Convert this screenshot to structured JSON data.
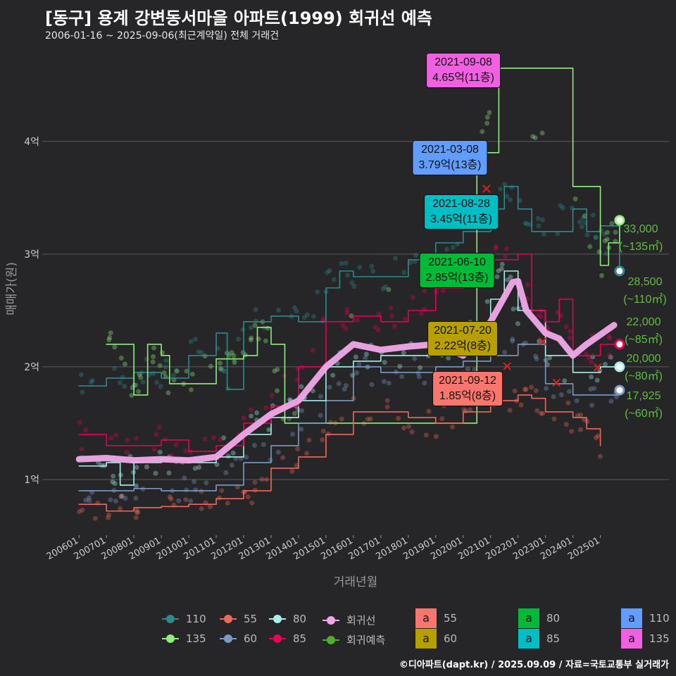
{
  "title": "[동구] 용계 강변동서마을 아파트(1999) 회귀선 예측",
  "subtitle": "2006-01-16 ~ 2025-09-06(최근계약일) 전체 거래건",
  "footer": "©디아파트(dapt.kr) / 2025.09.09 / 자료=국토교통부 실거래가",
  "chart_data": {
    "type": "line",
    "xlabel": "거래년월",
    "ylabel": "매매가(원)",
    "xlim": [
      2004.66,
      2027.5
    ],
    "ylim": [
      5060,
      48800
    ],
    "yticks": [
      {
        "v": 10000,
        "label": "1억"
      },
      {
        "v": 20000,
        "label": "2억"
      },
      {
        "v": 30000,
        "label": "3억"
      },
      {
        "v": 40000,
        "label": "4억"
      }
    ],
    "xticks": [
      "200601",
      "200701",
      "200801",
      "200901",
      "201001",
      "201101",
      "201201",
      "201301",
      "201401",
      "201501",
      "201601",
      "201701",
      "201801",
      "201901",
      "202001",
      "202101",
      "202201",
      "202301",
      "202401",
      "202501"
    ],
    "grid": true,
    "series": [
      {
        "name": "110",
        "color": "#2e8b8b",
        "points": [
          [
            2006,
            18300
          ],
          [
            2007,
            19000
          ],
          [
            2008,
            19500
          ],
          [
            2008.5,
            19500
          ],
          [
            2009,
            19000
          ],
          [
            2010,
            21000
          ],
          [
            2011,
            23000
          ],
          [
            2011.4,
            18000
          ],
          [
            2012,
            24000
          ],
          [
            2013,
            24500
          ],
          [
            2014,
            24000
          ],
          [
            2015,
            27000
          ],
          [
            2015.5,
            28500
          ],
          [
            2016,
            28000
          ],
          [
            2017,
            28000
          ],
          [
            2018,
            29500
          ],
          [
            2019,
            31000
          ],
          [
            2020,
            32000
          ],
          [
            2021,
            34000
          ],
          [
            2021.5,
            36000
          ],
          [
            2022,
            34000
          ],
          [
            2022.5,
            32000
          ],
          [
            2023,
            32000
          ],
          [
            2024,
            34000
          ],
          [
            2024.5,
            32000
          ],
          [
            2025,
            32500
          ],
          [
            2025.7,
            28500
          ]
        ]
      },
      {
        "name": "135",
        "color": "#90ee7a",
        "points": [
          [
            2007,
            22000
          ],
          [
            2007.5,
            22000
          ],
          [
            2008,
            17500
          ],
          [
            2008.5,
            22000
          ],
          [
            2009,
            21000
          ],
          [
            2009.3,
            18500
          ],
          [
            2010,
            18500
          ],
          [
            2011,
            20700
          ],
          [
            2011.5,
            20700
          ],
          [
            2012,
            21000
          ],
          [
            2012.5,
            23500
          ],
          [
            2013,
            22000
          ],
          [
            2013.5,
            15000
          ],
          [
            2020.5,
            39000
          ],
          [
            2021.3,
            46500
          ],
          [
            2024,
            36000
          ],
          [
            2025,
            29000
          ],
          [
            2025.3,
            31000
          ],
          [
            2025.7,
            33000
          ]
        ]
      },
      {
        "name": "55",
        "color": "#f0685a",
        "points": [
          [
            2006,
            7800
          ],
          [
            2007,
            7200
          ],
          [
            2008,
            7500
          ],
          [
            2009,
            7600
          ],
          [
            2010,
            7800
          ],
          [
            2011,
            8300
          ],
          [
            2012,
            9000
          ],
          [
            2012.4,
            9000
          ],
          [
            2013,
            11000
          ],
          [
            2014,
            12000
          ],
          [
            2015,
            14000
          ],
          [
            2016,
            16000
          ],
          [
            2017,
            16000
          ],
          [
            2018,
            15500
          ],
          [
            2019,
            15000
          ],
          [
            2020,
            16000
          ],
          [
            2021,
            17000
          ],
          [
            2022,
            17500
          ],
          [
            2022.5,
            17200
          ],
          [
            2023,
            16000
          ],
          [
            2024,
            15500
          ],
          [
            2024.5,
            14500
          ],
          [
            2025,
            13000
          ]
        ]
      },
      {
        "name": "60",
        "color": "#7e9ac4",
        "points": [
          [
            2006,
            9000
          ],
          [
            2007,
            9000
          ],
          [
            2008,
            9200
          ],
          [
            2009,
            9000
          ],
          [
            2010,
            9000
          ],
          [
            2011,
            9500
          ],
          [
            2012,
            11500
          ],
          [
            2013,
            13000
          ],
          [
            2014,
            15000
          ],
          [
            2015,
            17000
          ],
          [
            2016,
            20000
          ],
          [
            2017,
            19500
          ],
          [
            2018,
            19500
          ],
          [
            2019,
            20000
          ],
          [
            2020,
            20500
          ],
          [
            2021,
            21000
          ],
          [
            2022,
            22000
          ],
          [
            2023,
            18500
          ],
          [
            2024,
            17500
          ],
          [
            2025,
            17500
          ],
          [
            2025.7,
            17925
          ]
        ]
      },
      {
        "name": "80",
        "color": "#a8f0e8",
        "points": [
          [
            2006,
            11200
          ],
          [
            2007,
            11500
          ],
          [
            2007.5,
            9500
          ],
          [
            2008,
            11500
          ],
          [
            2009,
            11800
          ],
          [
            2010,
            11500
          ],
          [
            2011,
            12000
          ],
          [
            2012,
            14000
          ],
          [
            2013,
            15500
          ],
          [
            2014,
            17000
          ],
          [
            2015,
            20000
          ],
          [
            2016,
            20500
          ],
          [
            2017,
            21000
          ],
          [
            2018,
            21000
          ],
          [
            2019,
            21000
          ],
          [
            2020,
            22000
          ],
          [
            2021,
            26000
          ],
          [
            2021.5,
            28500
          ],
          [
            2022,
            25000
          ],
          [
            2023,
            21000
          ],
          [
            2024,
            19500
          ],
          [
            2025,
            20000
          ],
          [
            2025.7,
            20000
          ]
        ]
      },
      {
        "name": "85",
        "color": "#e8005a",
        "points": [
          [
            2006,
            14000
          ],
          [
            2007,
            13000
          ],
          [
            2008,
            13000
          ],
          [
            2009,
            13500
          ],
          [
            2010,
            12500
          ],
          [
            2011,
            13000
          ],
          [
            2012,
            15000
          ],
          [
            2013,
            16500
          ],
          [
            2014,
            20000
          ],
          [
            2015,
            24000
          ],
          [
            2016,
            24500
          ],
          [
            2017,
            24000
          ],
          [
            2018,
            25000
          ],
          [
            2019,
            27000
          ],
          [
            2020,
            29000
          ],
          [
            2021,
            29500
          ],
          [
            2022,
            30000
          ],
          [
            2022.5,
            25000
          ],
          [
            2023,
            24000
          ],
          [
            2023.5,
            26000
          ],
          [
            2024,
            21000
          ],
          [
            2025,
            22000
          ],
          [
            2025.7,
            22000
          ]
        ]
      },
      {
        "name": "회귀선",
        "color": "#f0a8e8",
        "points": [
          [
            2006,
            11800
          ],
          [
            2007,
            11900
          ],
          [
            2008,
            11700
          ],
          [
            2009,
            11800
          ],
          [
            2010,
            11700
          ],
          [
            2011,
            12000
          ],
          [
            2012,
            14000
          ],
          [
            2013,
            15800
          ],
          [
            2014,
            17000
          ],
          [
            2015,
            20000
          ],
          [
            2016,
            22000
          ],
          [
            2017,
            21500
          ],
          [
            2018,
            21800
          ],
          [
            2019,
            22000
          ],
          [
            2020,
            21000
          ],
          [
            2021,
            24000
          ],
          [
            2021.8,
            27500
          ],
          [
            2022.0,
            27600
          ],
          [
            2022.3,
            25000
          ],
          [
            2023,
            23000
          ],
          [
            2023.5,
            22500
          ],
          [
            2024,
            21000
          ],
          [
            2024.5,
            22000
          ],
          [
            2025.5,
            23700
          ]
        ]
      }
    ],
    "forecast_legend": {
      "name": "회귀예측",
      "color": "#4caf30"
    },
    "end_labels": [
      {
        "value": "33,000",
        "area": "(~135㎡)",
        "series": "135",
        "y": 33000
      },
      {
        "value": "28,500",
        "area": "(~110㎡)",
        "series": "110",
        "y": 28500
      },
      {
        "value": "22,000",
        "area": "(~85㎡)",
        "series": "85",
        "y": 22000
      },
      {
        "value": "20,000",
        "area": "(~80㎡)",
        "series": "80",
        "y": 20000
      },
      {
        "value": "17,925",
        "area": "(~60㎡)",
        "series": "60",
        "y": 17925
      }
    ],
    "annotations": [
      {
        "date": "2021-09-08",
        "price": "4.65억(11층)",
        "color": "#f060e0"
      },
      {
        "date": "2021-03-08",
        "price": "3.79억(13층)",
        "color": "#619cff"
      },
      {
        "date": "2021-08-28",
        "price": "3.45억(11층)",
        "color": "#00bfc4"
      },
      {
        "date": "2021-06-10",
        "price": "2.85억(13층)",
        "color": "#00ba38"
      },
      {
        "date": "2021-07-20",
        "price": "2.22억(8층)",
        "color": "#b79f00"
      },
      {
        "date": "2021-09-12",
        "price": "1.85억(8층)",
        "color": "#f8766d"
      }
    ],
    "legend": {
      "lines": [
        "110",
        "135",
        "55",
        "60",
        "80",
        "85",
        "회귀선",
        "회귀예측"
      ],
      "label_swatches": [
        {
          "label": "55",
          "color": "#f8766d"
        },
        {
          "label": "60",
          "color": "#b79f00"
        },
        {
          "label": "80",
          "color": "#00ba38"
        },
        {
          "label": "85",
          "color": "#00bfc4"
        },
        {
          "label": "110",
          "color": "#619cff"
        },
        {
          "label": "135",
          "color": "#f060e0"
        }
      ],
      "swatch_letter": "a"
    }
  }
}
